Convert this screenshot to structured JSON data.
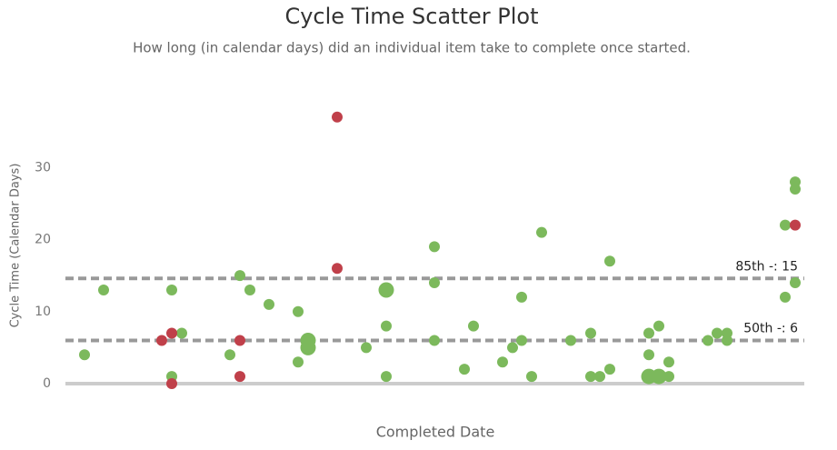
{
  "chart_data": {
    "type": "scatter",
    "title": "Cycle Time Scatter Plot",
    "subtitle": "How long (in calendar days) did an individual item take to complete once started.",
    "x_label": "Completed Date",
    "y_label": "Cycle Time (Calendar Days)",
    "xlim": [
      0,
      81.3
    ],
    "ylim": [
      0,
      40
    ],
    "yticks": [
      0,
      10,
      20,
      30
    ],
    "reference_lines": [
      {
        "value": 14.6,
        "label": "85th -: 15"
      },
      {
        "value": 6,
        "label": "50th -: 6"
      }
    ],
    "series": [
      {
        "color": "#7cb95c",
        "x": [
          2.1,
          4.2,
          11.7,
          11.7,
          12.8,
          18.1,
          19.2,
          20.3,
          22.4,
          25.6,
          25.6,
          26.7,
          26.7,
          33.1,
          35.3,
          35.3,
          35.3,
          40.6,
          40.6,
          40.6,
          43.9,
          44.9,
          48.1,
          49.2,
          50.2,
          50.2,
          51.3,
          52.4,
          55.6,
          57.8,
          57.8,
          58.8,
          59.9,
          59.9,
          64.2,
          64.2,
          64.2,
          65.3,
          65.3,
          66.4,
          66.4,
          70.7,
          71.7,
          72.8,
          72.8,
          79.2,
          79.2,
          80.3,
          80.3,
          80.3
        ],
        "values": [
          4,
          13,
          13,
          1,
          7,
          4,
          15,
          13,
          11,
          10,
          3,
          6,
          5,
          5,
          13,
          8,
          1,
          19,
          14,
          6,
          2,
          8,
          3,
          5,
          12,
          6,
          1,
          21,
          6,
          7,
          1,
          1,
          17,
          2,
          7,
          4,
          1,
          8,
          1,
          3,
          1,
          6,
          7,
          7,
          6,
          22,
          12,
          28,
          27,
          14
        ],
        "sizes": [
          1,
          1,
          1,
          1,
          1,
          1,
          1,
          1,
          1,
          1,
          1,
          2,
          2,
          1,
          2,
          1,
          1,
          1,
          1,
          1,
          1,
          1,
          1,
          1,
          1,
          1,
          1,
          1,
          1,
          1,
          1,
          1,
          1,
          1,
          1,
          1,
          2,
          1,
          2,
          1,
          1,
          1,
          1,
          1,
          1,
          1,
          1,
          1,
          1,
          1
        ]
      },
      {
        "color": "#c0404a",
        "x": [
          10.6,
          11.7,
          11.7,
          19.2,
          19.2,
          29.9,
          29.9,
          80.3
        ],
        "values": [
          6,
          7,
          0,
          6,
          1,
          37,
          16,
          22
        ],
        "sizes": [
          1,
          1,
          1,
          1,
          1,
          1,
          1,
          1
        ]
      }
    ]
  }
}
